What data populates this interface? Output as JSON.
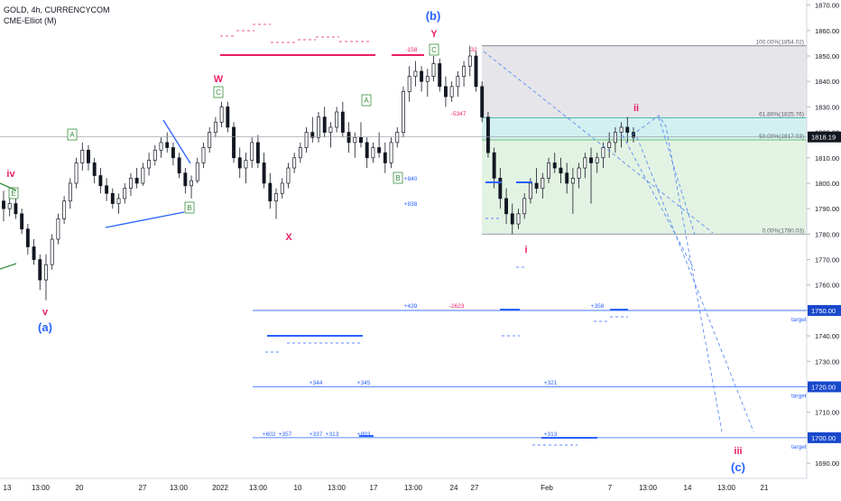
{
  "header": {
    "symbol_line": "GOLD, 4h, CURRENCYCOM",
    "indicator_line": "CME-Elliot (M)"
  },
  "colors": {
    "candle": "#131722",
    "wave_blue": "#2962ff",
    "wave_red": "#e91e63",
    "wave_green": "#388e3c",
    "fib_grey": "#e0e0e6",
    "fib_teal": "#cdeeee",
    "fib_green": "#e0f2e0",
    "axis_text": "#131722"
  },
  "chart_data": {
    "type": "candlestick",
    "title": "GOLD, 4h, CURRENCYCOM",
    "ylim": [
      1684,
      1872
    ],
    "y_ticks": [
      1690,
      1700,
      1710,
      1720,
      1730,
      1740,
      1750,
      1760,
      1770,
      1780,
      1790,
      1800,
      1810,
      1820,
      1830,
      1840,
      1850,
      1860,
      1870
    ],
    "x_ticks": [
      "13",
      "13:00",
      "20",
      "27",
      "13:00",
      "2022",
      "13:00",
      "10",
      "13:00",
      "17",
      "13:00",
      "24",
      "27",
      "Feb",
      "7",
      "13:00",
      "14",
      "13:00",
      "21"
    ],
    "current_price": "1818.19",
    "price_labels": [
      {
        "value": 1750,
        "text": "1750.00",
        "tag": "target"
      },
      {
        "value": 1720,
        "text": "1720.00",
        "tag": "target"
      },
      {
        "value": 1700,
        "text": "1700.00",
        "tag": "target"
      }
    ],
    "fibonacci": [
      {
        "ratio": "100.00%",
        "price": 1854.02,
        "text": "100.00%(1854.02)"
      },
      {
        "ratio": "61.80%",
        "price": 1825.76,
        "text": "61.80%(1825.76)"
      },
      {
        "ratio": "50.00%",
        "price": 1817.03,
        "text": "50.00%(1817.03)"
      },
      {
        "ratio": "0.00%",
        "price": 1780.03,
        "text": "0.00%(1780.03)"
      }
    ],
    "wave_labels": [
      {
        "text": "iv",
        "color": "wave_red"
      },
      {
        "text": "v",
        "color": "wave_red"
      },
      {
        "text": "(a)",
        "color": "wave_blue"
      },
      {
        "text": "W",
        "color": "wave_red"
      },
      {
        "text": "X",
        "color": "wave_red"
      },
      {
        "text": "(b)",
        "color": "wave_blue"
      },
      {
        "text": "Y",
        "color": "wave_red"
      },
      {
        "text": "i",
        "color": "wave_red"
      },
      {
        "text": "ii",
        "color": "wave_red"
      },
      {
        "text": "iii",
        "color": "wave_red"
      },
      {
        "text": "(c)",
        "color": "wave_blue"
      }
    ],
    "box_labels": [
      "E",
      "A",
      "B",
      "C",
      "A",
      "B",
      "C"
    ],
    "volume_notes": [
      "-158",
      "-32",
      "-5347",
      "+840",
      "+838",
      "+439",
      "-2623",
      "+358",
      "+344",
      "+345",
      "+321",
      "+602",
      "+357",
      "+337",
      "+313",
      "+893",
      "+313"
    ],
    "ohlc": [
      [
        1793,
        1797,
        1785,
        1790
      ],
      [
        1790,
        1795,
        1787,
        1792
      ],
      [
        1792,
        1795,
        1786,
        1788
      ],
      [
        1788,
        1790,
        1780,
        1782
      ],
      [
        1782,
        1784,
        1772,
        1775
      ],
      [
        1775,
        1778,
        1768,
        1770
      ],
      [
        1770,
        1772,
        1758,
        1762
      ],
      [
        1762,
        1772,
        1754,
        1768
      ],
      [
        1768,
        1780,
        1766,
        1778
      ],
      [
        1778,
        1788,
        1776,
        1786
      ],
      [
        1786,
        1795,
        1784,
        1793
      ],
      [
        1793,
        1802,
        1790,
        1800
      ],
      [
        1800,
        1810,
        1798,
        1808
      ],
      [
        1808,
        1816,
        1805,
        1813
      ],
      [
        1813,
        1815,
        1805,
        1808
      ],
      [
        1808,
        1810,
        1800,
        1803
      ],
      [
        1803,
        1806,
        1796,
        1799
      ],
      [
        1799,
        1802,
        1793,
        1796
      ],
      [
        1796,
        1798,
        1790,
        1792
      ],
      [
        1792,
        1796,
        1788,
        1794
      ],
      [
        1794,
        1800,
        1792,
        1798
      ],
      [
        1798,
        1804,
        1795,
        1802
      ],
      [
        1802,
        1806,
        1798,
        1800
      ],
      [
        1800,
        1808,
        1799,
        1806
      ],
      [
        1806,
        1812,
        1803,
        1809
      ],
      [
        1809,
        1815,
        1807,
        1813
      ],
      [
        1813,
        1818,
        1810,
        1816
      ],
      [
        1816,
        1820,
        1812,
        1814
      ],
      [
        1814,
        1816,
        1807,
        1810
      ],
      [
        1810,
        1812,
        1802,
        1804
      ],
      [
        1804,
        1806,
        1796,
        1799
      ],
      [
        1799,
        1803,
        1794,
        1801
      ],
      [
        1801,
        1810,
        1800,
        1808
      ],
      [
        1808,
        1816,
        1806,
        1814
      ],
      [
        1814,
        1822,
        1812,
        1820
      ],
      [
        1820,
        1826,
        1818,
        1824
      ],
      [
        1824,
        1832,
        1822,
        1830
      ],
      [
        1830,
        1832,
        1820,
        1822
      ],
      [
        1822,
        1824,
        1808,
        1810
      ],
      [
        1810,
        1814,
        1802,
        1806
      ],
      [
        1806,
        1812,
        1800,
        1809
      ],
      [
        1809,
        1818,
        1806,
        1816
      ],
      [
        1816,
        1819,
        1806,
        1808
      ],
      [
        1808,
        1812,
        1798,
        1800
      ],
      [
        1800,
        1804,
        1790,
        1793
      ],
      [
        1793,
        1798,
        1786,
        1796
      ],
      [
        1796,
        1802,
        1794,
        1800
      ],
      [
        1800,
        1808,
        1798,
        1806
      ],
      [
        1806,
        1812,
        1804,
        1810
      ],
      [
        1810,
        1816,
        1808,
        1814
      ],
      [
        1814,
        1822,
        1812,
        1820
      ],
      [
        1820,
        1826,
        1816,
        1818
      ],
      [
        1818,
        1828,
        1816,
        1826
      ],
      [
        1826,
        1830,
        1818,
        1820
      ],
      [
        1820,
        1824,
        1814,
        1822
      ],
      [
        1822,
        1830,
        1820,
        1828
      ],
      [
        1828,
        1832,
        1818,
        1820
      ],
      [
        1820,
        1824,
        1812,
        1816
      ],
      [
        1816,
        1820,
        1810,
        1818
      ],
      [
        1818,
        1824,
        1814,
        1816
      ],
      [
        1816,
        1818,
        1806,
        1810
      ],
      [
        1810,
        1816,
        1808,
        1814
      ],
      [
        1814,
        1820,
        1810,
        1812
      ],
      [
        1812,
        1816,
        1804,
        1808
      ],
      [
        1808,
        1818,
        1806,
        1816
      ],
      [
        1816,
        1822,
        1814,
        1820
      ],
      [
        1820,
        1838,
        1818,
        1836
      ],
      [
        1836,
        1846,
        1832,
        1842
      ],
      [
        1842,
        1848,
        1838,
        1844
      ],
      [
        1844,
        1846,
        1836,
        1840
      ],
      [
        1840,
        1845,
        1834,
        1842
      ],
      [
        1842,
        1850,
        1840,
        1847
      ],
      [
        1847,
        1849,
        1836,
        1838
      ],
      [
        1838,
        1842,
        1830,
        1834
      ],
      [
        1834,
        1840,
        1832,
        1838
      ],
      [
        1838,
        1844,
        1834,
        1842
      ],
      [
        1842,
        1848,
        1838,
        1846
      ],
      [
        1846,
        1854,
        1842,
        1850
      ],
      [
        1850,
        1852,
        1836,
        1838
      ],
      [
        1838,
        1840,
        1824,
        1826
      ],
      [
        1826,
        1828,
        1810,
        1812
      ],
      [
        1812,
        1814,
        1798,
        1802
      ],
      [
        1802,
        1806,
        1790,
        1794
      ],
      [
        1794,
        1798,
        1784,
        1788
      ],
      [
        1788,
        1792,
        1780,
        1784
      ],
      [
        1784,
        1790,
        1782,
        1788
      ],
      [
        1788,
        1796,
        1786,
        1794
      ],
      [
        1794,
        1802,
        1792,
        1800
      ],
      [
        1800,
        1806,
        1796,
        1798
      ],
      [
        1798,
        1804,
        1794,
        1802
      ],
      [
        1802,
        1810,
        1800,
        1808
      ],
      [
        1808,
        1812,
        1804,
        1806
      ],
      [
        1806,
        1810,
        1800,
        1804
      ],
      [
        1804,
        1808,
        1796,
        1800
      ],
      [
        1800,
        1806,
        1788,
        1802
      ],
      [
        1802,
        1808,
        1798,
        1806
      ],
      [
        1806,
        1812,
        1802,
        1810
      ],
      [
        1810,
        1814,
        1792,
        1808
      ],
      [
        1808,
        1812,
        1804,
        1810
      ],
      [
        1810,
        1816,
        1806,
        1814
      ],
      [
        1814,
        1820,
        1810,
        1816
      ],
      [
        1816,
        1822,
        1812,
        1820
      ],
      [
        1820,
        1824,
        1814,
        1822
      ],
      [
        1822,
        1826,
        1816,
        1820
      ],
      [
        1820,
        1822,
        1816,
        1818
      ]
    ]
  }
}
